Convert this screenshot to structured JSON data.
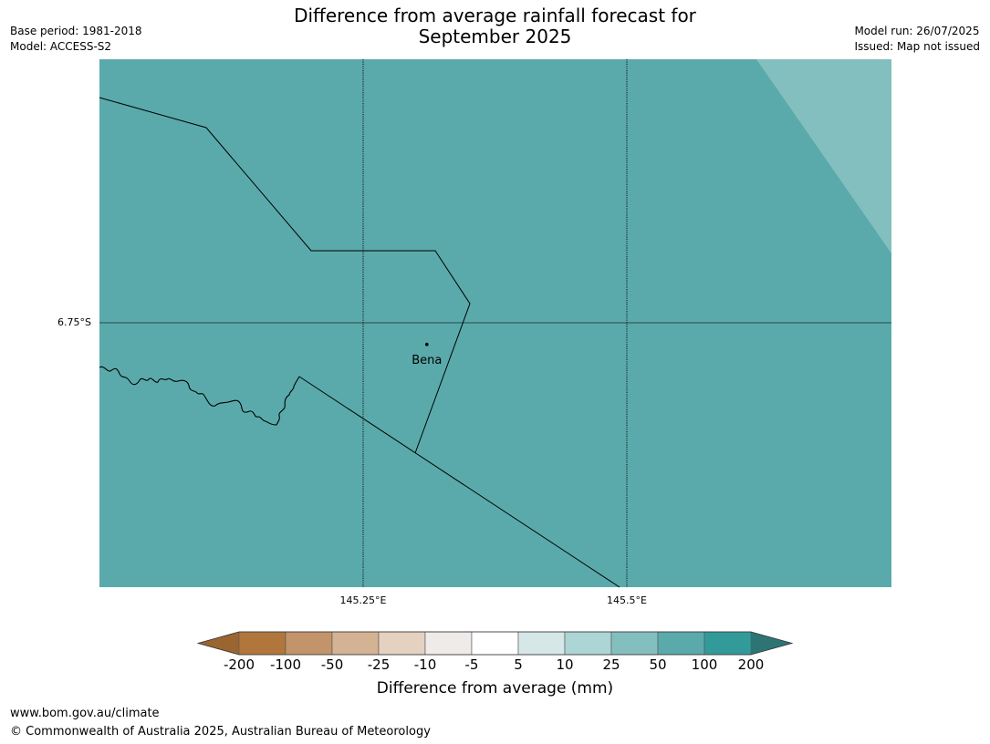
{
  "title": "Difference from average rainfall forecast for\nSeptember 2025",
  "meta_left": {
    "base_period": "Base period: 1981-2018",
    "model": "Model: ACCESS-S2"
  },
  "meta_right": {
    "model_run": "Model run: 26/07/2025",
    "issued": "Issued: Map not issued"
  },
  "map": {
    "fill_color": "#5aaaab",
    "fill_color_light": "#84bfbf",
    "lat_label": "6.75°S",
    "lon_labels": [
      "145.25°E",
      "145.5°E"
    ],
    "places": [
      {
        "name": "Bena",
        "lon": 145.31,
        "lat": -6.77
      }
    ]
  },
  "colorbar": {
    "colors": [
      "#9a6530",
      "#b1763c",
      "#c3946a",
      "#d4b294",
      "#e5d1c0",
      "#efebe8",
      "#ffffff",
      "#d5e7e7",
      "#acd5d5",
      "#84bfbf",
      "#5aaaab",
      "#339a9a",
      "#2d7575"
    ],
    "tick_labels": [
      "-200",
      "-100",
      "-50",
      "-25",
      "-10",
      "-5",
      "5",
      "10",
      "25",
      "50",
      "100",
      "200"
    ],
    "title": "Difference from average (mm)"
  },
  "footer": {
    "url": "www.bom.gov.au/climate",
    "copyright": "© Commonwealth of Australia 2025, Australian Bureau of Meteorology"
  }
}
